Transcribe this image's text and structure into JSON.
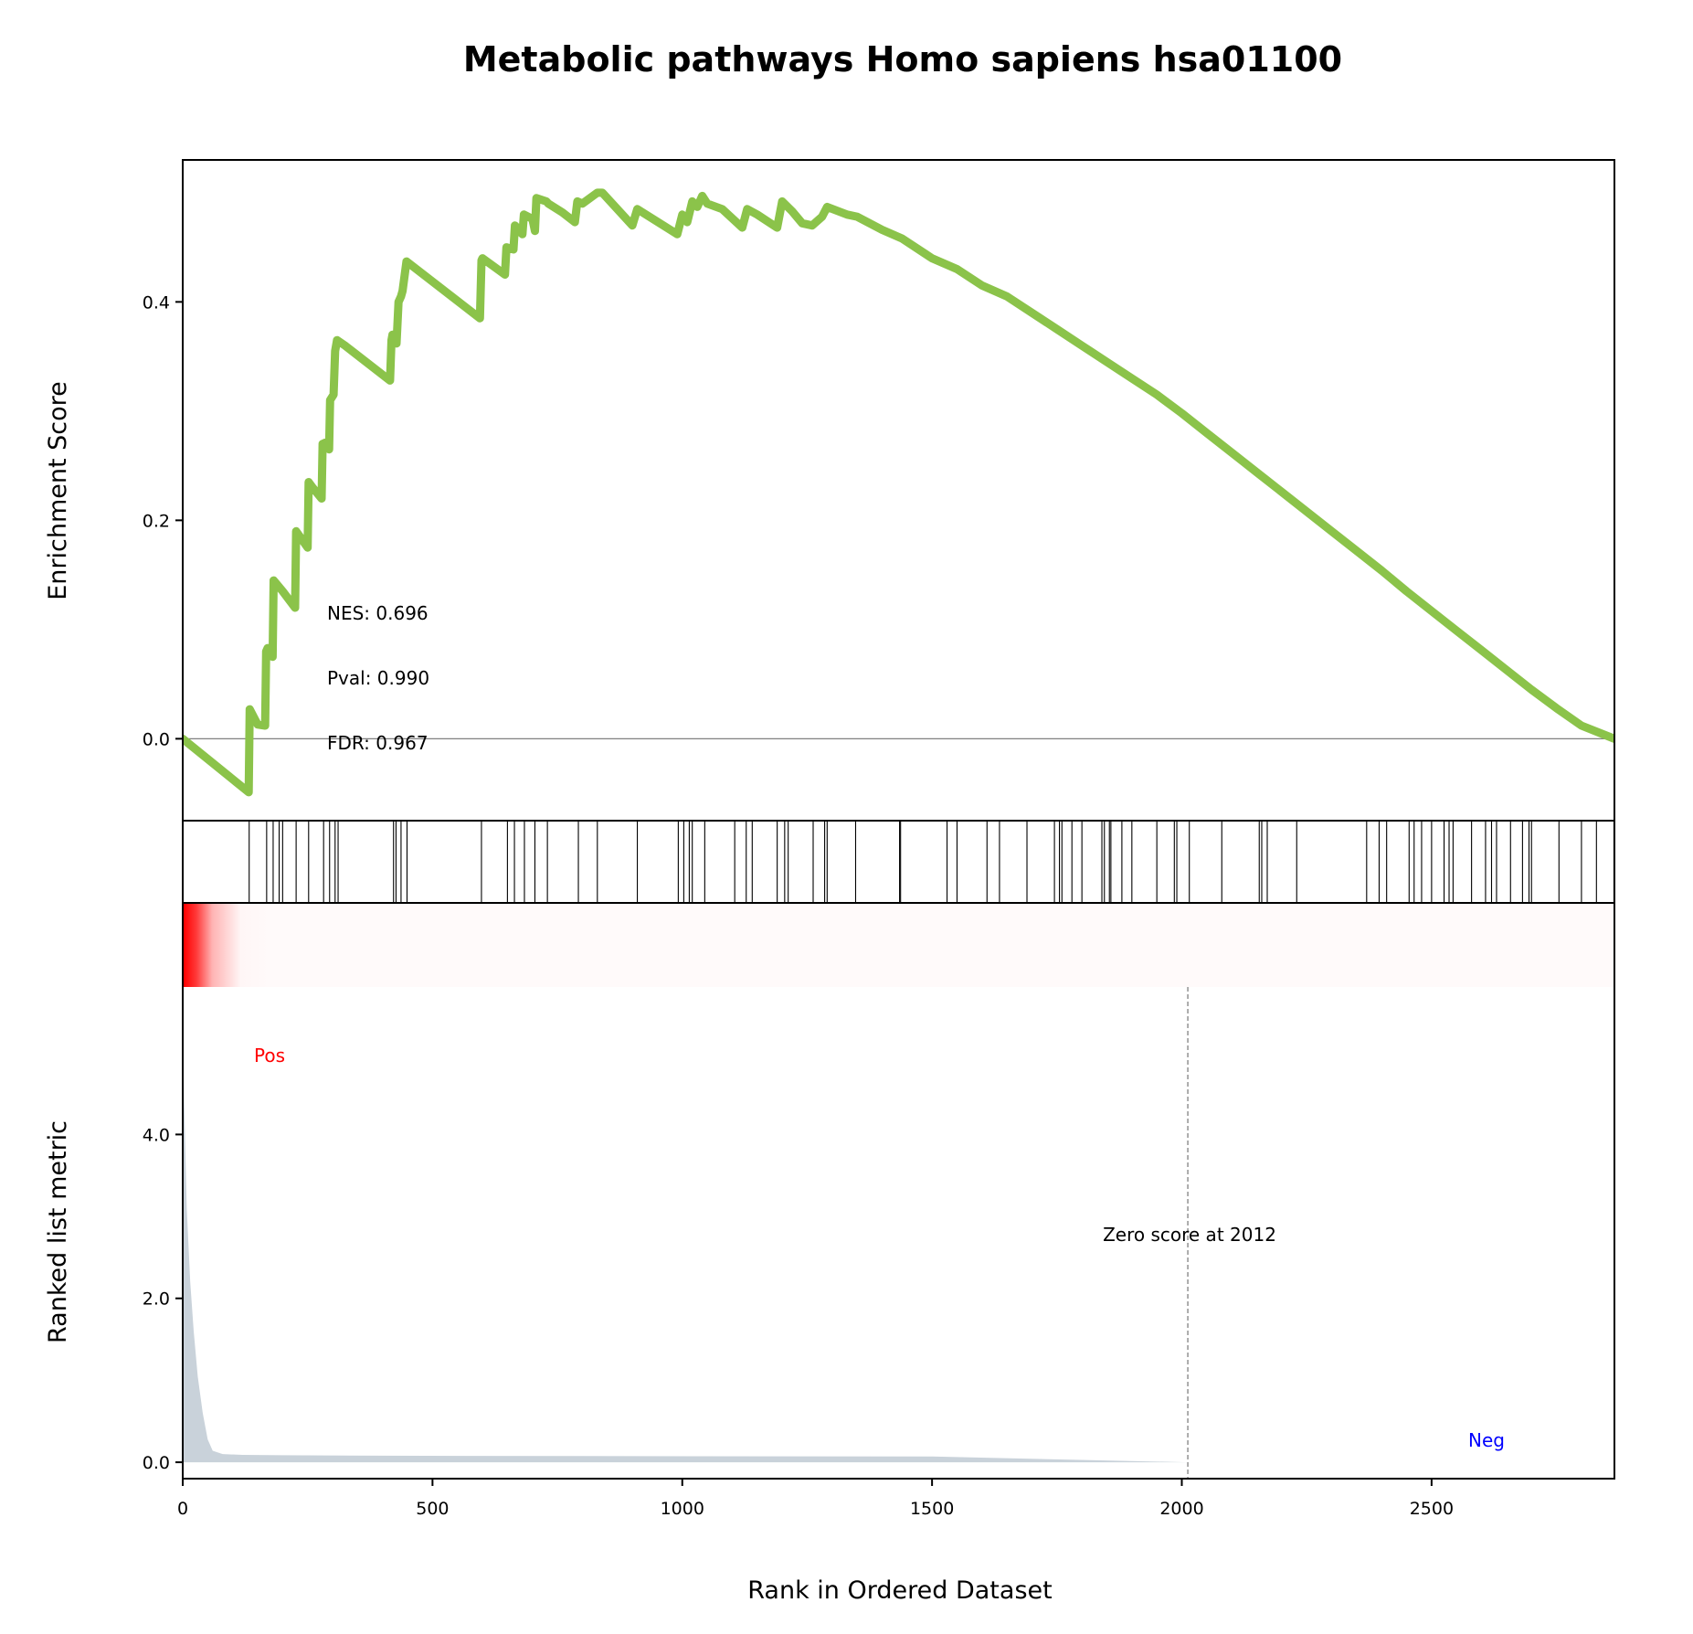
{
  "chart_data": {
    "type": "line",
    "title": "Metabolic pathways Homo sapiens hsa01100",
    "xlabel": "Rank in Ordered Dataset",
    "xlim": [
      0,
      2866
    ],
    "x_ticks": [
      0,
      500,
      1000,
      1500,
      2000,
      2500
    ],
    "x_tick_labels": [
      "0",
      "500",
      "1000",
      "1500",
      "2000",
      "2500"
    ],
    "enrichment": {
      "ylabel": "Enrichment Score",
      "ylim": [
        -0.075,
        0.53
      ],
      "y_ticks": [
        0.0,
        0.2,
        0.4
      ],
      "y_tick_labels": [
        "0.0",
        "0.2",
        "0.4"
      ],
      "line_color": "#8bc34a",
      "series": [
        {
          "x": [
            0,
            132,
            134,
            150,
            165,
            167,
            170,
            180,
            182,
            200,
            225,
            227,
            230,
            250,
            252,
            260,
            278,
            280,
            290,
            293,
            295,
            302,
            305,
            309,
            325,
            415,
            418,
            420,
            428,
            432,
            437,
            440,
            448,
            595,
            598,
            600,
            645,
            648,
            662,
            665,
            680,
            683,
            700,
            705,
            708,
            728,
            732,
            760,
            785,
            790,
            800,
            830,
            840,
            900,
            910,
            990,
            1000,
            1010,
            1020,
            1030,
            1040,
            1050,
            1080,
            1120,
            1130,
            1150,
            1190,
            1200,
            1220,
            1240,
            1260,
            1280,
            1290,
            1330,
            1350,
            1400,
            1440,
            1500,
            1550,
            1600,
            1650,
            1700,
            1750,
            1800,
            1850,
            1900,
            1950,
            2000,
            2050,
            2100,
            2150,
            2200,
            2250,
            2300,
            2350,
            2400,
            2450,
            2500,
            2550,
            2600,
            2650,
            2700,
            2750,
            2800,
            2866
          ],
          "y": [
            0.0,
            -0.049,
            0.027,
            0.013,
            0.012,
            0.08,
            0.083,
            0.075,
            0.145,
            0.135,
            0.12,
            0.19,
            0.188,
            0.175,
            0.235,
            0.23,
            0.22,
            0.27,
            0.272,
            0.265,
            0.31,
            0.315,
            0.355,
            0.365,
            0.36,
            0.328,
            0.365,
            0.37,
            0.362,
            0.4,
            0.405,
            0.41,
            0.437,
            0.385,
            0.438,
            0.44,
            0.425,
            0.45,
            0.448,
            0.47,
            0.462,
            0.48,
            0.476,
            0.465,
            0.495,
            0.492,
            0.49,
            0.482,
            0.473,
            0.492,
            0.49,
            0.5,
            0.5,
            0.47,
            0.485,
            0.462,
            0.48,
            0.473,
            0.492,
            0.487,
            0.497,
            0.49,
            0.485,
            0.468,
            0.485,
            0.48,
            0.468,
            0.492,
            0.483,
            0.472,
            0.47,
            0.478,
            0.487,
            0.48,
            0.478,
            0.466,
            0.458,
            0.44,
            0.43,
            0.415,
            0.405,
            0.39,
            0.375,
            0.36,
            0.345,
            0.33,
            0.315,
            0.298,
            0.28,
            0.262,
            0.244,
            0.226,
            0.208,
            0.19,
            0.172,
            0.154,
            0.135,
            0.117,
            0.099,
            0.081,
            0.063,
            0.045,
            0.028,
            0.012,
            0.0
          ]
        }
      ],
      "stats": {
        "nes_label": "NES: 0.696",
        "pval_label": "Pval: 0.990",
        "fdr_label": "FDR: 0.967"
      }
    },
    "hits": [
      133,
      168,
      181,
      193,
      200,
      227,
      252,
      282,
      294,
      305,
      311,
      422,
      427,
      437,
      449,
      598,
      650,
      664,
      684,
      705,
      730,
      792,
      830,
      910,
      992,
      1003,
      1014,
      1020,
      1045,
      1105,
      1128,
      1140,
      1190,
      1205,
      1212,
      1262,
      1285,
      1290,
      1347,
      1435,
      1437,
      1530,
      1550,
      1610,
      1635,
      1690,
      1745,
      1755,
      1760,
      1780,
      1800,
      1840,
      1845,
      1855,
      1858,
      1880,
      1900,
      1950,
      1985,
      1990,
      2015,
      2080,
      2155,
      2160,
      2171,
      2230,
      2370,
      2395,
      2410,
      2455,
      2465,
      2480,
      2500,
      2525,
      2535,
      2543,
      2580,
      2608,
      2620,
      2630,
      2658,
      2682,
      2695,
      2700,
      2755,
      2800,
      2830,
      2865
    ],
    "ranked_metric": {
      "ylabel": "Ranked list metric",
      "ylim": [
        -0.2,
        5.8
      ],
      "y_ticks": [
        0.0,
        2.0,
        4.0
      ],
      "y_tick_labels": [
        "0.0",
        "2.0",
        "4.0"
      ],
      "fill_color": "#c9d2da",
      "x": [
        0,
        3,
        8,
        15,
        22,
        30,
        40,
        50,
        60,
        80,
        120,
        200,
        400,
        800,
        1500,
        2012,
        2500,
        2866
      ],
      "y": [
        5.2,
        4.4,
        3.1,
        2.2,
        1.6,
        1.05,
        0.6,
        0.28,
        0.14,
        0.1,
        0.09,
        0.085,
        0.08,
        0.075,
        0.07,
        0.0,
        0.0,
        0.0
      ],
      "pos_label": "Pos",
      "neg_label": "Neg",
      "pos_color": "#ff0000",
      "neg_color": "#0000ff",
      "zero_score_label": "Zero score at 2012",
      "zero_score_rank": 2012
    }
  }
}
